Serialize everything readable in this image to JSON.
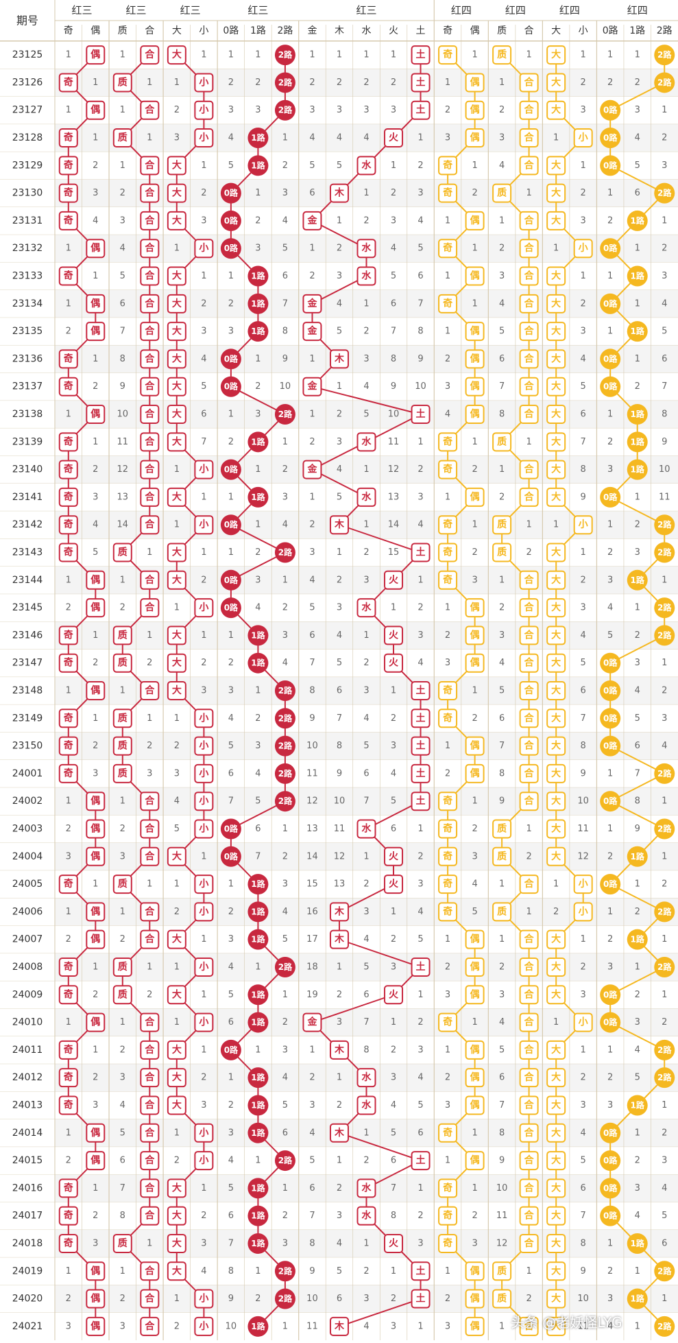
{
  "header": {
    "period_label": "期号",
    "group_red3": "红3",
    "group_red4": "红4",
    "red3_subgroups": [
      "红三",
      "红三",
      "红三",
      "红三",
      "红三"
    ],
    "red4_subgroups": [
      "红四",
      "红四",
      "红四",
      "红四"
    ],
    "col_labels": [
      "奇",
      "偶",
      "质",
      "合",
      "大",
      "小",
      "0路",
      "1路",
      "2路",
      "金",
      "木",
      "水",
      "火",
      "土",
      "奇",
      "偶",
      "质",
      "合",
      "大",
      "小",
      "0路",
      "1路",
      "2路"
    ]
  },
  "colors": {
    "red": "#C8283F",
    "gold": "#F5B820",
    "grid": "#D6C9AE",
    "header_text": "#333333",
    "cell_text": "#555555",
    "header_bg": "#FFFFFF",
    "stripe": "#F4F4F4"
  },
  "watermark": "头条 @老妖怪LYG",
  "chart_data": {
    "type": "table",
    "columns": [
      "奇",
      "偶",
      "质",
      "合",
      "大",
      "小",
      "0路",
      "1路",
      "2路",
      "金",
      "木",
      "水",
      "火",
      "土",
      "奇",
      "偶",
      "质",
      "合",
      "大",
      "小",
      "0路",
      "1路",
      "2路"
    ],
    "periods": [
      "23125",
      "23126",
      "23127",
      "23128",
      "23129",
      "23130",
      "23131",
      "23132",
      "23133",
      "23134",
      "23135",
      "23136",
      "23137",
      "23138",
      "23139",
      "23140",
      "23141",
      "23142",
      "23143",
      "23144",
      "23145",
      "23146",
      "23147",
      "23148",
      "23149",
      "23150",
      "24001",
      "24002",
      "24003",
      "24004",
      "24005",
      "24006",
      "24007",
      "24008",
      "24009",
      "24010",
      "24011",
      "24012",
      "24013",
      "24014",
      "24015",
      "24016",
      "24017",
      "24018",
      "24019",
      "24020",
      "24021"
    ],
    "red3": {
      "odd_even": [
        "偶",
        "奇",
        "偶",
        "奇",
        "奇",
        "奇",
        "奇",
        "偶",
        "奇",
        "偶",
        "偶",
        "奇",
        "奇",
        "偶",
        "奇",
        "奇",
        "奇",
        "奇",
        "奇",
        "偶",
        "偶",
        "奇",
        "奇",
        "偶",
        "奇",
        "奇",
        "奇",
        "偶",
        "偶",
        "偶",
        "奇",
        "偶",
        "偶",
        "奇",
        "奇",
        "偶",
        "奇",
        "奇",
        "奇",
        "偶",
        "偶",
        "奇",
        "奇",
        "奇",
        "偶",
        "偶",
        "偶"
      ],
      "prime_composite": [
        "合",
        "质",
        "合",
        "质",
        "合",
        "合",
        "合",
        "合",
        "合",
        "合",
        "合",
        "合",
        "合",
        "合",
        "合",
        "合",
        "合",
        "合",
        "质",
        "合",
        "合",
        "质",
        "质",
        "合",
        "质",
        "质",
        "质",
        "合",
        "合",
        "合",
        "质",
        "合",
        "合",
        "质",
        "质",
        "合",
        "合",
        "合",
        "合",
        "合",
        "合",
        "合",
        "合",
        "质",
        "合",
        "合",
        "合"
      ],
      "big_small": [
        "大",
        "小",
        "小",
        "小",
        "大",
        "大",
        "大",
        "小",
        "大",
        "大",
        "大",
        "大",
        "大",
        "大",
        "大",
        "小",
        "大",
        "小",
        "大",
        "大",
        "小",
        "大",
        "大",
        "大",
        "小",
        "小",
        "小",
        "小",
        "小",
        "大",
        "小",
        "小",
        "大",
        "小",
        "大",
        "小",
        "大",
        "大",
        "大",
        "小",
        "小",
        "大",
        "大",
        "大",
        "大",
        "小",
        "小"
      ],
      "route": [
        "2路",
        "2路",
        "2路",
        "1路",
        "1路",
        "0路",
        "0路",
        "0路",
        "1路",
        "1路",
        "1路",
        "0路",
        "0路",
        "2路",
        "1路",
        "0路",
        "1路",
        "0路",
        "2路",
        "0路",
        "0路",
        "1路",
        "1路",
        "2路",
        "2路",
        "2路",
        "2路",
        "2路",
        "0路",
        "0路",
        "1路",
        "1路",
        "1路",
        "2路",
        "1路",
        "1路",
        "0路",
        "1路",
        "1路",
        "1路",
        "2路",
        "1路",
        "1路",
        "1路",
        "2路",
        "2路",
        "1路"
      ],
      "element": [
        "土",
        "土",
        "土",
        "火",
        "水",
        "木",
        "金",
        "水",
        "水",
        "金",
        "金",
        "木",
        "金",
        "土",
        "水",
        "金",
        "水",
        "木",
        "土",
        "火",
        "水",
        "火",
        "火",
        "土",
        "土",
        "土",
        "土",
        "土",
        "水",
        "火",
        "火",
        "木",
        "木",
        "土",
        "火",
        "金",
        "木",
        "水",
        "水",
        "木",
        "土",
        "水",
        "水",
        "火",
        "土",
        "土",
        "木"
      ]
    },
    "red4": {
      "odd_even": [
        "奇",
        "偶",
        "偶",
        "偶",
        "奇",
        "奇",
        "偶",
        "奇",
        "偶",
        "奇",
        "偶",
        "偶",
        "偶",
        "偶",
        "奇",
        "奇",
        "偶",
        "奇",
        "奇",
        "奇",
        "偶",
        "偶",
        "偶",
        "奇",
        "奇",
        "偶",
        "偶",
        "奇",
        "奇",
        "奇",
        "奇",
        "奇",
        "偶",
        "偶",
        "偶",
        "奇",
        "偶",
        "偶",
        "偶",
        "奇",
        "偶",
        "奇",
        "奇",
        "奇",
        "偶",
        "偶",
        "偶"
      ],
      "prime_composite": [
        "质",
        "合",
        "合",
        "合",
        "合",
        "质",
        "合",
        "合",
        "合",
        "合",
        "合",
        "合",
        "合",
        "合",
        "质",
        "合",
        "合",
        "质",
        "质",
        "合",
        "合",
        "合",
        "合",
        "合",
        "合",
        "合",
        "合",
        "合",
        "质",
        "质",
        "合",
        "质",
        "合",
        "合",
        "合",
        "合",
        "合",
        "合",
        "合",
        "合",
        "合",
        "合",
        "合",
        "合",
        "质",
        "质",
        "合"
      ],
      "big_small": [
        "大",
        "大",
        "大",
        "小",
        "大",
        "大",
        "大",
        "小",
        "大",
        "大",
        "大",
        "大",
        "大",
        "大",
        "大",
        "大",
        "大",
        "小",
        "大",
        "大",
        "大",
        "大",
        "大",
        "大",
        "大",
        "大",
        "大",
        "大",
        "大",
        "大",
        "小",
        "小",
        "大",
        "大",
        "大",
        "小",
        "大",
        "大",
        "大",
        "大",
        "大",
        "大",
        "大",
        "大",
        "大",
        "大",
        "大"
      ],
      "route": [
        "2路",
        "2路",
        "0路",
        "0路",
        "0路",
        "2路",
        "1路",
        "0路",
        "1路",
        "0路",
        "1路",
        "0路",
        "0路",
        "1路",
        "1路",
        "1路",
        "0路",
        "2路",
        "2路",
        "1路",
        "2路",
        "2路",
        "0路",
        "0路",
        "0路",
        "0路",
        "2路",
        "0路",
        "2路",
        "1路",
        "0路",
        "2路",
        "1路",
        "2路",
        "0路",
        "0路",
        "2路",
        "2路",
        "1路",
        "0路",
        "0路",
        "0路",
        "0路",
        "1路",
        "2路",
        "1路",
        "2路"
      ]
    }
  }
}
